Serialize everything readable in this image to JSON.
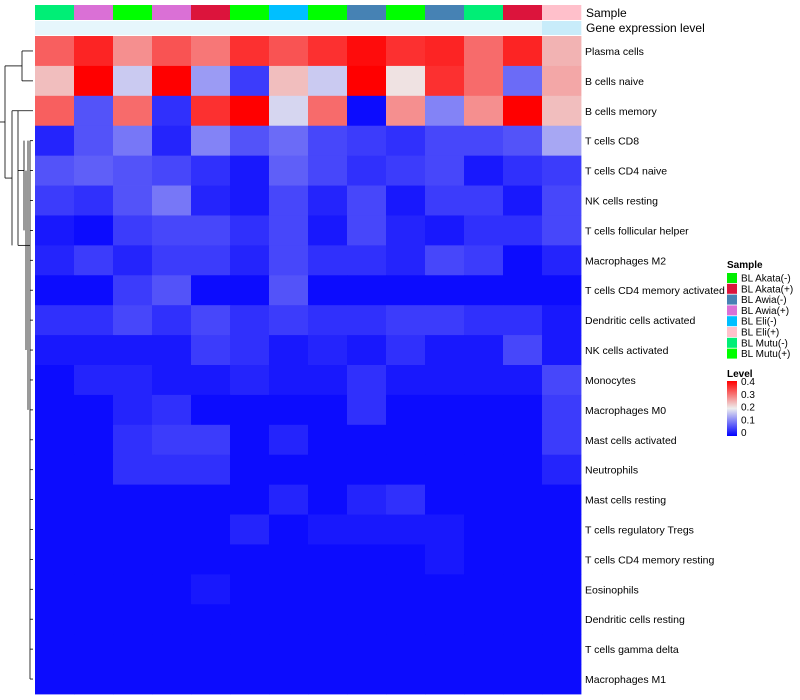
{
  "chart_data": {
    "type": "heatmap",
    "annotation_labels": [
      "Sample",
      "Gene expression level"
    ],
    "sample_groups": [
      "BL Mutu(-)",
      "BL Awia(+)",
      "BL Mutu(+)",
      "BL Awia(+)",
      "BL Akata(+)",
      "BL Mutu(+)",
      "BL Eli(-)",
      "BL Mutu(+)",
      "BL Awia(-)",
      "BL Mutu(+)",
      "BL Awia(-)",
      "BL Mutu(-)",
      "BL Akata(+)",
      "BL Eli(+)"
    ],
    "rows": [
      "Plasma cells",
      "B cells naive",
      "B cells memory",
      "T cells CD8",
      "T cells CD4 naive",
      "NK cells resting",
      "T cells follicular helper",
      "Macrophages M2",
      "T cells CD4 memory activated",
      "Dendritic cells activated",
      "NK cells activated",
      "Monocytes",
      "Macrophages M0",
      "Mast cells activated",
      "Neutrophils",
      "Mast cells resting",
      "T cells regulatory  Tregs",
      "T cells CD4 memory resting",
      "Eosinophils",
      "Dendritic cells resting",
      "T cells gamma delta",
      "Macrophages M1"
    ],
    "values": [
      [
        0.32,
        0.37,
        0.28,
        0.33,
        0.3,
        0.36,
        0.33,
        0.36,
        0.39,
        0.36,
        0.37,
        0.31,
        0.37,
        0.25
      ],
      [
        0.24,
        0.4,
        0.17,
        0.4,
        0.13,
        0.05,
        0.24,
        0.17,
        0.4,
        0.21,
        0.36,
        0.31,
        0.09,
        0.26
      ],
      [
        0.32,
        0.07,
        0.31,
        0.04,
        0.36,
        0.4,
        0.18,
        0.31,
        0.01,
        0.28,
        0.11,
        0.28,
        0.4,
        0.24
      ],
      [
        0.03,
        0.07,
        0.1,
        0.03,
        0.11,
        0.07,
        0.09,
        0.06,
        0.05,
        0.04,
        0.06,
        0.06,
        0.07,
        0.14
      ],
      [
        0.07,
        0.08,
        0.07,
        0.06,
        0.04,
        0.02,
        0.08,
        0.06,
        0.04,
        0.05,
        0.06,
        0.02,
        0.04,
        0.05
      ],
      [
        0.05,
        0.04,
        0.07,
        0.1,
        0.03,
        0.02,
        0.06,
        0.03,
        0.06,
        0.02,
        0.05,
        0.05,
        0.02,
        0.06
      ],
      [
        0.02,
        0.01,
        0.05,
        0.06,
        0.06,
        0.04,
        0.06,
        0.02,
        0.06,
        0.03,
        0.02,
        0.04,
        0.04,
        0.06
      ],
      [
        0.03,
        0.05,
        0.03,
        0.05,
        0.05,
        0.03,
        0.06,
        0.04,
        0.04,
        0.03,
        0.06,
        0.05,
        0.01,
        0.03
      ],
      [
        0.01,
        0.01,
        0.05,
        0.07,
        0.01,
        0.01,
        0.07,
        0.01,
        0.01,
        0.01,
        0.01,
        0.01,
        0.01,
        0.01
      ],
      [
        0.04,
        0.04,
        0.06,
        0.04,
        0.06,
        0.04,
        0.05,
        0.04,
        0.04,
        0.05,
        0.05,
        0.04,
        0.04,
        0.02
      ],
      [
        0.02,
        0.02,
        0.02,
        0.02,
        0.05,
        0.04,
        0.02,
        0.03,
        0.02,
        0.04,
        0.02,
        0.02,
        0.06,
        0.02
      ],
      [
        0.01,
        0.03,
        0.03,
        0.02,
        0.02,
        0.03,
        0.02,
        0.02,
        0.04,
        0.02,
        0.02,
        0.02,
        0.02,
        0.06
      ],
      [
        0.01,
        0.01,
        0.03,
        0.04,
        0.01,
        0.01,
        0.01,
        0.01,
        0.04,
        0.01,
        0.01,
        0.01,
        0.01,
        0.05
      ],
      [
        0.01,
        0.01,
        0.04,
        0.05,
        0.05,
        0.01,
        0.03,
        0.01,
        0.01,
        0.01,
        0.01,
        0.01,
        0.01,
        0.05
      ],
      [
        0.01,
        0.01,
        0.04,
        0.04,
        0.04,
        0.01,
        0.01,
        0.01,
        0.01,
        0.01,
        0.01,
        0.01,
        0.01,
        0.03
      ],
      [
        0.01,
        0.01,
        0.01,
        0.01,
        0.01,
        0.01,
        0.03,
        0.01,
        0.03,
        0.04,
        0.01,
        0.01,
        0.01,
        0.01
      ],
      [
        0.01,
        0.01,
        0.01,
        0.01,
        0.01,
        0.03,
        0.01,
        0.02,
        0.02,
        0.02,
        0.02,
        0.01,
        0.01,
        0.01
      ],
      [
        0.01,
        0.01,
        0.01,
        0.01,
        0.01,
        0.01,
        0.01,
        0.01,
        0.01,
        0.01,
        0.02,
        0.01,
        0.01,
        0.01
      ],
      [
        0.01,
        0.01,
        0.01,
        0.01,
        0.02,
        0.01,
        0.01,
        0.01,
        0.01,
        0.01,
        0.01,
        0.01,
        0.01,
        0.01
      ],
      [
        0.01,
        0.01,
        0.01,
        0.01,
        0.01,
        0.01,
        0.01,
        0.01,
        0.01,
        0.01,
        0.01,
        0.01,
        0.01,
        0.01
      ],
      [
        0.01,
        0.01,
        0.01,
        0.01,
        0.01,
        0.01,
        0.01,
        0.01,
        0.01,
        0.01,
        0.01,
        0.01,
        0.01,
        0.01
      ],
      [
        0.01,
        0.01,
        0.01,
        0.01,
        0.01,
        0.01,
        0.01,
        0.01,
        0.01,
        0.01,
        0.01,
        0.01,
        0.01,
        0.01
      ]
    ],
    "color_scale": {
      "stops": [
        0,
        0.2,
        0.4
      ],
      "colors": [
        "#0000ff",
        "#eeeeee",
        "#ff0000"
      ]
    },
    "legend_sample": {
      "title": "Sample",
      "entries": [
        {
          "label": "BL Akata(-)",
          "color": "#00ee00"
        },
        {
          "label": "BL Akata(+)",
          "color": "#dc143c"
        },
        {
          "label": "BL Awia(-)",
          "color": "#4682b4"
        },
        {
          "label": "BL Awia(+)",
          "color": "#da70d6"
        },
        {
          "label": "BL Eli(-)",
          "color": "#00bfff"
        },
        {
          "label": "BL Eli(+)",
          "color": "#ffc0cb"
        },
        {
          "label": "BL Mutu(-)",
          "color": "#00ee76"
        },
        {
          "label": "BL Mutu(+)",
          "color": "#00ff00"
        }
      ]
    },
    "legend_level": {
      "title": "Level",
      "ticks": [
        "0.4",
        "0.3",
        "0.2",
        "0.1",
        "0"
      ]
    },
    "expression_band_color": "#c8ecfa",
    "expression_band_light": "#e6f6fc"
  }
}
